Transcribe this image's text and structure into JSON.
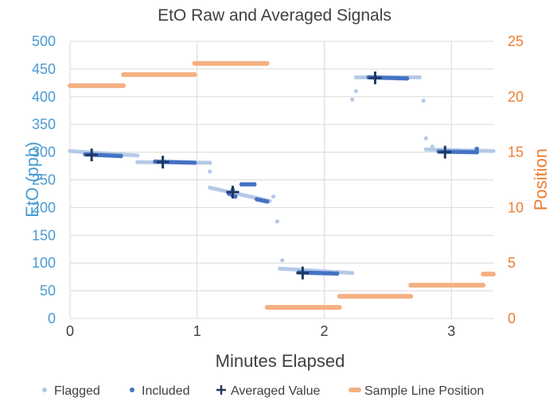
{
  "chart_data": {
    "type": "scatter",
    "title": "EtO Raw and Averaged Signals",
    "xlabel": "Minutes Elapsed",
    "ylabel": "EtO (ppb)",
    "y2label": "Position",
    "xlim": [
      0,
      3.33
    ],
    "ylim": [
      0,
      500
    ],
    "y2lim": [
      0,
      25
    ],
    "xticks": [
      0,
      1,
      2,
      3
    ],
    "yticks": [
      0,
      50,
      100,
      150,
      200,
      250,
      300,
      350,
      400,
      450,
      500
    ],
    "y2ticks": [
      0,
      5,
      10,
      15,
      20,
      25
    ],
    "grid": true,
    "legend_position": "bottom",
    "colors": {
      "flagged": "#b4c9e6",
      "included": "#4472c4",
      "averaged": "#1f3864",
      "sample_line": "#f4b183",
      "axis_left": "#4a9bd1",
      "axis_right": "#ed7d31"
    },
    "series": [
      {
        "name": "Flagged",
        "axis": "left",
        "marker": "dot",
        "segments": [
          {
            "x0": 0.0,
            "x1": 0.53,
            "y0": 302,
            "y1": 294
          },
          {
            "x0": 0.53,
            "x1": 1.1,
            "y0": 282,
            "y1": 281
          },
          {
            "x0": 1.1,
            "x1": 1.57,
            "y0": 236,
            "y1": 212
          },
          {
            "x0": 1.65,
            "x1": 2.22,
            "y0": 90,
            "y1": 82
          },
          {
            "x0": 2.25,
            "x1": 2.75,
            "y0": 435,
            "y1": 435
          },
          {
            "x0": 2.8,
            "x1": 3.33,
            "y0": 305,
            "y1": 302
          }
        ],
        "points": [
          {
            "x": 1.1,
            "y": 265
          },
          {
            "x": 1.6,
            "y": 220
          },
          {
            "x": 1.63,
            "y": 175
          },
          {
            "x": 1.67,
            "y": 105
          },
          {
            "x": 2.22,
            "y": 395
          },
          {
            "x": 2.25,
            "y": 410
          },
          {
            "x": 2.78,
            "y": 393
          },
          {
            "x": 2.8,
            "y": 325
          },
          {
            "x": 2.85,
            "y": 310
          }
        ]
      },
      {
        "name": "Included",
        "axis": "left",
        "marker": "dot",
        "segments": [
          {
            "x0": 0.12,
            "x1": 0.4,
            "y0": 296,
            "y1": 293
          },
          {
            "x0": 0.67,
            "x1": 0.98,
            "y0": 283,
            "y1": 281
          },
          {
            "x0": 1.25,
            "x1": 1.3,
            "y0": 225,
            "y1": 220
          },
          {
            "x0": 1.35,
            "x1": 1.45,
            "y0": 242,
            "y1": 242
          },
          {
            "x0": 1.47,
            "x1": 1.55,
            "y0": 215,
            "y1": 211
          },
          {
            "x0": 1.8,
            "x1": 2.1,
            "y0": 83,
            "y1": 81
          },
          {
            "x0": 2.35,
            "x1": 2.65,
            "y0": 435,
            "y1": 433
          },
          {
            "x0": 2.9,
            "x1": 3.2,
            "y0": 301,
            "y1": 300
          }
        ],
        "points": [
          {
            "x": 1.28,
            "y": 232
          },
          {
            "x": 3.2,
            "y": 306
          }
        ]
      },
      {
        "name": "Averaged Value",
        "axis": "left",
        "marker": "plus",
        "points": [
          {
            "x": 0.17,
            "y": 295
          },
          {
            "x": 0.73,
            "y": 282
          },
          {
            "x": 1.28,
            "y": 228
          },
          {
            "x": 1.83,
            "y": 82
          },
          {
            "x": 2.4,
            "y": 434
          },
          {
            "x": 2.95,
            "y": 300
          }
        ]
      },
      {
        "name": "Sample Line Position",
        "axis": "right",
        "marker": "dash",
        "steps": [
          {
            "x0": 0.0,
            "x1": 0.42,
            "y": 21
          },
          {
            "x0": 0.42,
            "x1": 0.98,
            "y": 22
          },
          {
            "x0": 0.98,
            "x1": 1.55,
            "y": 23
          },
          {
            "x0": 1.55,
            "x1": 2.12,
            "y": 1
          },
          {
            "x0": 2.12,
            "x1": 2.68,
            "y": 2
          },
          {
            "x0": 2.68,
            "x1": 3.25,
            "y": 3
          },
          {
            "x0": 3.25,
            "x1": 3.33,
            "y": 4
          }
        ]
      }
    ]
  }
}
